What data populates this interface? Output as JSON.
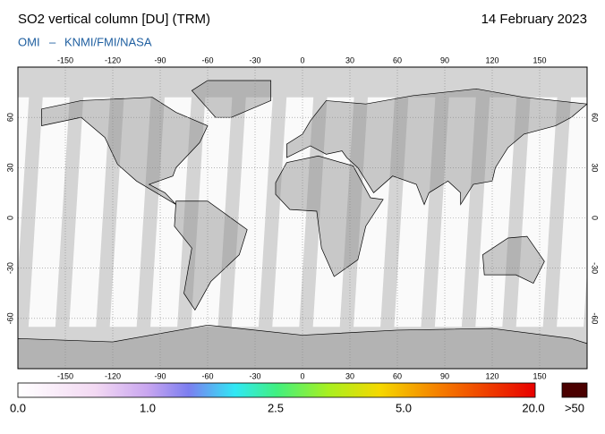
{
  "header": {
    "title": "SO2 vertical column [DU] (TRM)",
    "date": "14 February 2023",
    "instrument": "OMI",
    "separator": "–",
    "credit": "KNMI/FMI/NASA"
  },
  "map": {
    "lonlim": [
      -180,
      180
    ],
    "latlim": [
      -90,
      90
    ],
    "lon_ticks": [
      -150,
      -120,
      -90,
      -60,
      -30,
      0,
      30,
      60,
      90,
      120,
      150
    ],
    "lat_ticks": [
      60,
      30,
      0,
      -30,
      -60
    ]
  },
  "colorbar": {
    "labels": [
      "0.0",
      "1.0",
      "2.5",
      "5.0",
      "20.0",
      ">50"
    ]
  }
}
